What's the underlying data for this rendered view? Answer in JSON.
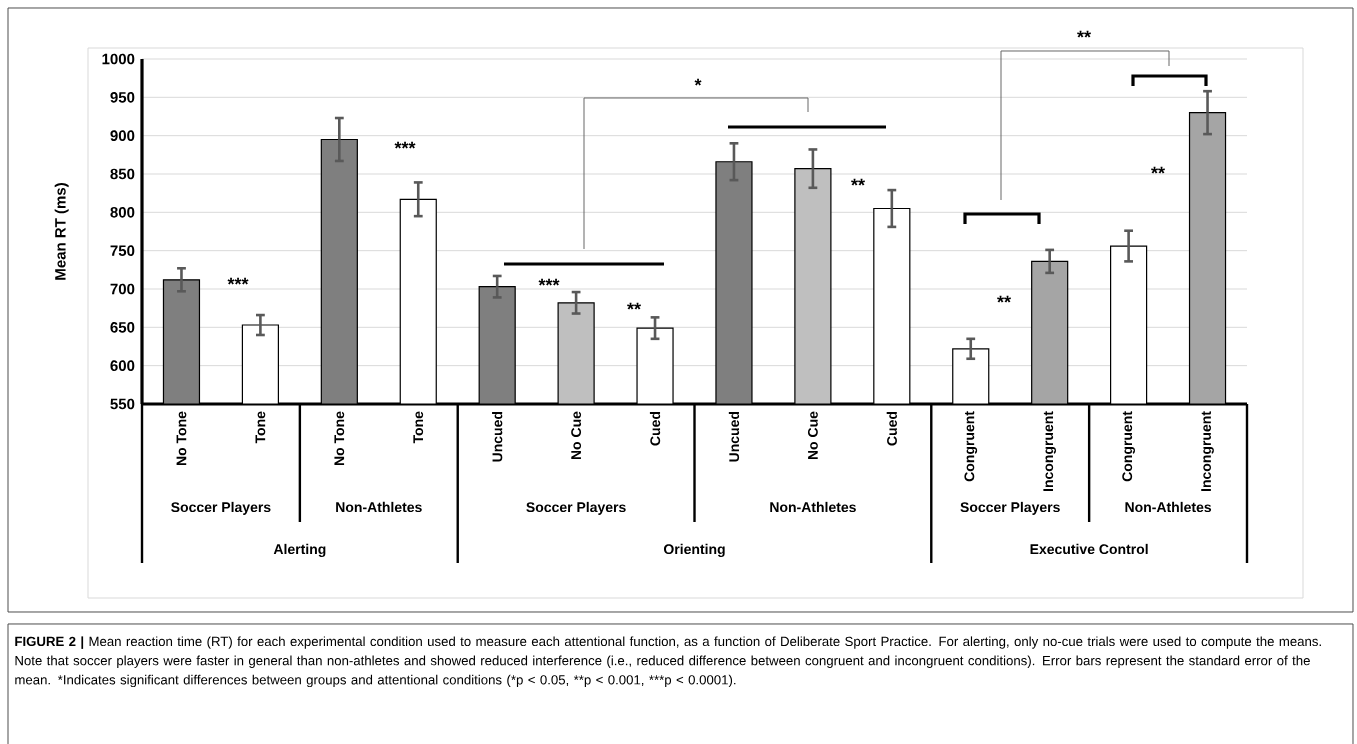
{
  "chart_data": {
    "type": "bar",
    "ylabel": "Mean RT (ms)",
    "categories": [
      "No Tone",
      "Tone",
      "No Tone",
      "Tone",
      "Uncued",
      "No Cue",
      "Cued",
      "Uncued",
      "No Cue",
      "Cued",
      "Congruent",
      "Incongruent",
      "Congruent",
      "Incongruent"
    ],
    "values": [
      712,
      653,
      895,
      817,
      703,
      682,
      649,
      866,
      857,
      805,
      622,
      736,
      756,
      930
    ],
    "errors": [
      15,
      13,
      28,
      22,
      14,
      14,
      14,
      24,
      25,
      24,
      13,
      15,
      20,
      28
    ],
    "colors": [
      "#7f7f7f",
      "#ffffff",
      "#7f7f7f",
      "#ffffff",
      "#7f7f7f",
      "#bfbfbf",
      "#ffffff",
      "#7f7f7f",
      "#bfbfbf",
      "#ffffff",
      "#ffffff",
      "#a5a5a5",
      "#ffffff",
      "#a5a5a5"
    ],
    "ylim": [
      550,
      1000
    ],
    "yticks": [
      550,
      600,
      650,
      700,
      750,
      800,
      850,
      900,
      950,
      1000
    ],
    "grid": "y",
    "annotations": [
      "***",
      "***",
      "***",
      "**",
      "*",
      "**",
      "**",
      "**",
      "**",
      "Soccer Players",
      "Non-Athletes",
      "Soccer Players",
      "Non-Athletes",
      "Soccer Players",
      "Non-Athletes",
      "Alerting",
      "Orienting",
      "Executive Control",
      "**FIGURE 2 |** Mean reaction time (RT) for each experimental condition used to measure each attentional function, as a function of Deliberate Sport Practice. For alerting, only no-cue trials were used to compute the means. Note that soccer players were faster in general than non-athletes and showed reduced interference (i.e., reduced difference between congruent and incongruent conditions). Error bars represent the standard error of the mean. ",
      "*Indicates significant differences between groups and attentional conditions (",
      "*p < 0.05, ",
      "**p < 0.001, ",
      "***p < 0.0001)."
    ]
  }
}
